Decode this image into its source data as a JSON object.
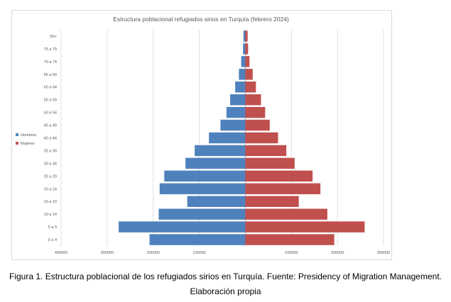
{
  "chart_data": {
    "type": "bar",
    "orientation": "horizontal",
    "subtype": "population-pyramid",
    "title": "Estructura poblacional refugiados sirios en Turquía (febrero 2024)",
    "categories": [
      "0 a 4",
      "5 a 9",
      "10 a 14",
      "15 a 19",
      "20 a 24",
      "25 a 29",
      "30 a 34",
      "35 a 39",
      "40 a 44",
      "45 a 49",
      "50 a 54",
      "55 a 59",
      "60 a 64",
      "65 a 69",
      "70 a 74",
      "75 a 79",
      "80+"
    ],
    "series": [
      {
        "name": "Hombres",
        "color": "#4f81bd",
        "values": [
          208000,
          275000,
          188000,
          126000,
          186000,
          176000,
          130000,
          110000,
          79000,
          54000,
          41000,
          33000,
          22000,
          14000,
          9000,
          5000,
          4000
        ]
      },
      {
        "name": "Mujeres",
        "color": "#c0504d",
        "values": [
          193000,
          259000,
          178000,
          116000,
          163000,
          146000,
          107000,
          89000,
          71000,
          53000,
          43000,
          34000,
          23000,
          16000,
          9000,
          6000,
          5000
        ]
      }
    ],
    "x_ticks": [
      "400000",
      "300000",
      "200000",
      "100000",
      "",
      "100000",
      "200000",
      "300000"
    ],
    "xlim": [
      -400000,
      300000
    ],
    "grid": true,
    "legend_position": "left"
  },
  "caption": {
    "line1": "Figura 1. Estructura poblacional de los refugiados sirios en Turquía. Fuente: Presidency of Migration Management.",
    "line2": "Elaboración propia"
  }
}
